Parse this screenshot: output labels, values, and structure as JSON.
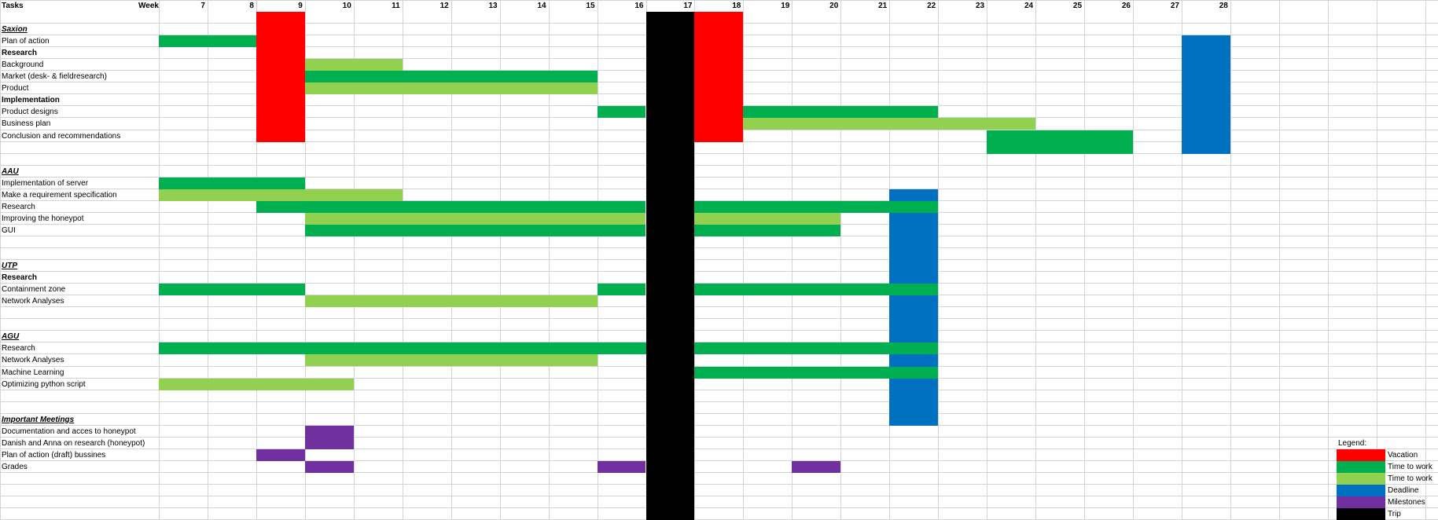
{
  "header": {
    "tasks_label": "Tasks",
    "week_label": "Week",
    "weeks": [
      "7",
      "8",
      "9",
      "10",
      "11",
      "12",
      "13",
      "14",
      "15",
      "16",
      "17",
      "18",
      "19",
      "20",
      "21",
      "22",
      "23",
      "24",
      "25",
      "26",
      "27",
      "28"
    ]
  },
  "colors": {
    "vacation": "#ff0000",
    "work_dark": "#00b050",
    "work_light": "#92d050",
    "deadline": "#0070c0",
    "milestone": "#7030a0",
    "trip": "#000000"
  },
  "rows": [
    {
      "label": "Saxion",
      "style": "section"
    },
    {
      "label": "Plan of action",
      "style": "normal"
    },
    {
      "label": "Research",
      "style": "bold"
    },
    {
      "label": "Background",
      "style": "normal"
    },
    {
      "label": "Market (desk- & fieldresearch)",
      "style": "normal"
    },
    {
      "label": "Product",
      "style": "normal"
    },
    {
      "label": "Implementation",
      "style": "bold"
    },
    {
      "label": "Product designs",
      "style": "normal"
    },
    {
      "label": "Business plan",
      "style": "normal"
    },
    {
      "label": "Conclusion and recommendations",
      "style": "normal"
    },
    {
      "label": "",
      "style": "normal"
    },
    {
      "label": "",
      "style": "normal"
    },
    {
      "label": "AAU",
      "style": "section"
    },
    {
      "label": "Implementation of server",
      "style": "normal"
    },
    {
      "label": "Make a requirement specification",
      "style": "normal"
    },
    {
      "label": "Research",
      "style": "normal"
    },
    {
      "label": "Improving the honeypot",
      "style": "normal"
    },
    {
      "label": "GUI",
      "style": "normal"
    },
    {
      "label": "",
      "style": "normal"
    },
    {
      "label": "",
      "style": "normal"
    },
    {
      "label": "UTP",
      "style": "section"
    },
    {
      "label": "Research",
      "style": "bold"
    },
    {
      "label": "Containment zone",
      "style": "normal"
    },
    {
      "label": "Network Analyses",
      "style": "normal"
    },
    {
      "label": "",
      "style": "normal"
    },
    {
      "label": "",
      "style": "normal"
    },
    {
      "label": "AGU",
      "style": "section"
    },
    {
      "label": "Research",
      "style": "normal"
    },
    {
      "label": "Network Analyses",
      "style": "normal"
    },
    {
      "label": "Machine Learning",
      "style": "normal"
    },
    {
      "label": "Optimizing python script",
      "style": "normal"
    },
    {
      "label": "",
      "style": "normal"
    },
    {
      "label": "",
      "style": "normal"
    },
    {
      "label": "Important Meetings",
      "style": "section"
    },
    {
      "label": "Documentation and acces to honeypot",
      "style": "normal"
    },
    {
      "label": "Danish and Anna on research (honeypot)",
      "style": "normal"
    },
    {
      "label": "Plan of action (draft) bussines",
      "style": "normal"
    },
    {
      "label": "Grades",
      "style": "normal"
    }
  ],
  "bars": [
    {
      "color": "vacation",
      "c0": 2,
      "c1": 3,
      "r0": 0,
      "r1": 11
    },
    {
      "color": "vacation",
      "c0": 11,
      "c1": 12,
      "r0": 0,
      "r1": 11
    },
    {
      "color": "deadline",
      "c0": 21,
      "c1": 22,
      "r0": 2,
      "r1": 12
    },
    {
      "color": "deadline",
      "c0": 15,
      "c1": 16,
      "r0": 15,
      "r1": 35
    },
    {
      "color": "trip",
      "c0": 10,
      "c1": 11,
      "r0": 0,
      "r1": 43
    },
    {
      "color": "work_dark",
      "c0": 0,
      "c1": 2,
      "r0": 2,
      "r1": 3
    },
    {
      "color": "work_light",
      "c0": 3,
      "c1": 5,
      "r0": 4,
      "r1": 5
    },
    {
      "color": "work_dark",
      "c0": 3,
      "c1": 9,
      "r0": 5,
      "r1": 6
    },
    {
      "color": "work_light",
      "c0": 3,
      "c1": 9,
      "r0": 6,
      "r1": 7
    },
    {
      "color": "work_dark",
      "c0": 9,
      "c1": 10,
      "r0": 8,
      "r1": 9
    },
    {
      "color": "work_dark",
      "c0": 12,
      "c1": 16,
      "r0": 8,
      "r1": 9
    },
    {
      "color": "work_light",
      "c0": 12,
      "c1": 18,
      "r0": 9,
      "r1": 10
    },
    {
      "color": "work_dark",
      "c0": 17,
      "c1": 20,
      "r0": 10,
      "r1": 12
    },
    {
      "color": "work_dark",
      "c0": 0,
      "c1": 3,
      "r0": 14,
      "r1": 15
    },
    {
      "color": "work_light",
      "c0": 0,
      "c1": 5,
      "r0": 15,
      "r1": 16
    },
    {
      "color": "work_dark",
      "c0": 2,
      "c1": 10,
      "r0": 16,
      "r1": 17
    },
    {
      "color": "work_dark",
      "c0": 11,
      "c1": 16,
      "r0": 16,
      "r1": 17
    },
    {
      "color": "work_light",
      "c0": 3,
      "c1": 10,
      "r0": 17,
      "r1": 18
    },
    {
      "color": "work_light",
      "c0": 11,
      "c1": 14,
      "r0": 17,
      "r1": 18
    },
    {
      "color": "work_dark",
      "c0": 3,
      "c1": 10,
      "r0": 18,
      "r1": 19
    },
    {
      "color": "work_dark",
      "c0": 11,
      "c1": 14,
      "r0": 18,
      "r1": 19
    },
    {
      "color": "work_dark",
      "c0": 0,
      "c1": 3,
      "r0": 23,
      "r1": 24
    },
    {
      "color": "work_dark",
      "c0": 9,
      "c1": 10,
      "r0": 23,
      "r1": 24
    },
    {
      "color": "work_dark",
      "c0": 11,
      "c1": 16,
      "r0": 23,
      "r1": 24
    },
    {
      "color": "work_light",
      "c0": 3,
      "c1": 9,
      "r0": 24,
      "r1": 25
    },
    {
      "color": "work_dark",
      "c0": 0,
      "c1": 10,
      "r0": 28,
      "r1": 29
    },
    {
      "color": "work_dark",
      "c0": 11,
      "c1": 16,
      "r0": 28,
      "r1": 29
    },
    {
      "color": "work_light",
      "c0": 3,
      "c1": 9,
      "r0": 29,
      "r1": 30
    },
    {
      "color": "work_dark",
      "c0": 11,
      "c1": 16,
      "r0": 30,
      "r1": 31
    },
    {
      "color": "work_light",
      "c0": 0,
      "c1": 4,
      "r0": 31,
      "r1": 32
    },
    {
      "color": "milestone",
      "c0": 3,
      "c1": 4,
      "r0": 35,
      "r1": 37
    },
    {
      "color": "milestone",
      "c0": 2,
      "c1": 3,
      "r0": 37,
      "r1": 38
    },
    {
      "color": "milestone",
      "c0": 3,
      "c1": 4,
      "r0": 38,
      "r1": 39
    },
    {
      "color": "milestone",
      "c0": 9,
      "c1": 10,
      "r0": 38,
      "r1": 39
    },
    {
      "color": "milestone",
      "c0": 13,
      "c1": 14,
      "r0": 38,
      "r1": 39
    }
  ],
  "legend": {
    "title": "Legend:",
    "items": [
      {
        "color": "vacation",
        "label": "Vacation"
      },
      {
        "color": "work_dark",
        "label": "Time to work"
      },
      {
        "color": "work_light",
        "label": "Time to work"
      },
      {
        "color": "deadline",
        "label": "Deadline"
      },
      {
        "color": "milestone",
        "label": "Milestones"
      },
      {
        "color": "trip",
        "label": "Trip"
      }
    ]
  }
}
